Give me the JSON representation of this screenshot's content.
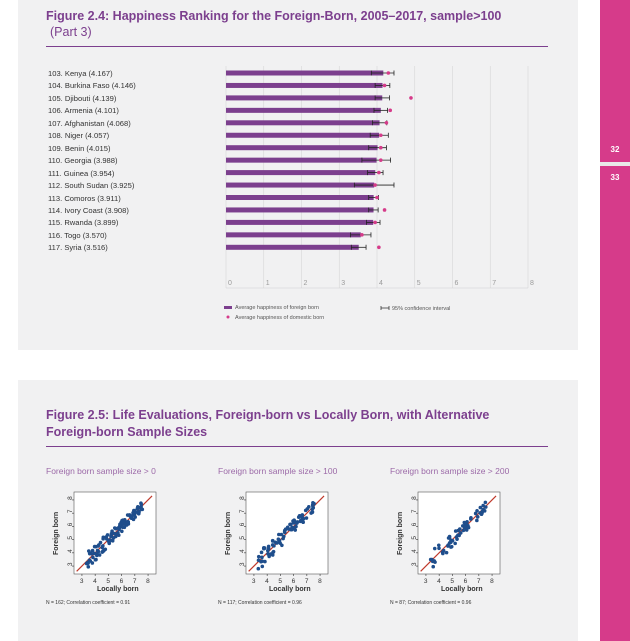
{
  "figure1": {
    "title": "Figure 2.4: Happiness Ranking for the Foreign-Born, 2005–2017, sample>100",
    "subtitle": "(Part 3)"
  },
  "figure2": {
    "title_line1": "Figure 2.5: Life Evaluations, Foreign-born vs Locally Born, with Alternative",
    "title_line2": "Foreign-born Sample Sizes"
  },
  "sidebar": {
    "page_a": "32",
    "page_b": "33",
    "accent": "#d63b8a"
  },
  "chart_data": [
    {
      "type": "bar",
      "orientation": "horizontal",
      "title": "Figure 2.4: Happiness Ranking for the Foreign-Born, 2005–2017, sample>100",
      "categories": [
        "103. Kenya (4.167)",
        "104. Burkina Faso (4.146)",
        "105. Djibouti (4.139)",
        "106. Armenia (4.101)",
        "107. Afghanistan (4.068)",
        "108. Niger (4.057)",
        "109. Benin (4.015)",
        "110. Georgia (3.988)",
        "111. Guinea (3.954)",
        "112. South Sudan (3.925)",
        "113. Comoros (3.911)",
        "114. Ivory Coast (3.908)",
        "115. Rwanda (3.899)",
        "116. Togo (3.570)",
        "117. Syria (3.516)"
      ],
      "series": [
        {
          "name": "Average happiness of foreign born",
          "values": [
            4.167,
            4.146,
            4.139,
            4.101,
            4.068,
            4.057,
            4.015,
            3.988,
            3.954,
            3.925,
            3.911,
            3.908,
            3.899,
            3.57,
            3.516
          ]
        },
        {
          "name": "95% confidence interval",
          "low": [
            3.85,
            3.95,
            3.95,
            3.92,
            3.88,
            3.82,
            3.78,
            3.6,
            3.75,
            3.4,
            3.78,
            3.78,
            3.72,
            3.3,
            3.32
          ],
          "high": [
            4.45,
            4.34,
            4.33,
            4.28,
            4.26,
            4.3,
            4.25,
            4.36,
            4.16,
            4.45,
            4.04,
            4.03,
            4.08,
            3.84,
            3.71
          ]
        },
        {
          "name": "Average happiness of domestic born",
          "values": [
            4.3,
            4.2,
            4.9,
            4.35,
            4.25,
            4.1,
            4.1,
            4.1,
            4.05,
            3.95,
            4.0,
            4.2,
            3.95,
            3.6,
            4.05
          ]
        }
      ],
      "xlim": [
        0,
        8
      ],
      "xticks": [
        0,
        1,
        2,
        3,
        4,
        5,
        6,
        7,
        8
      ],
      "legend": [
        "Average happiness of foreign born",
        "95% confidence interval",
        "Average happiness of domestic born"
      ]
    },
    {
      "type": "scatter",
      "title": "Foreign born sample size > 0",
      "xlabel": "Locally born",
      "ylabel": "Foreign born",
      "xticks": [
        3,
        4,
        5,
        6,
        7,
        8
      ],
      "yticks": [
        3,
        4,
        5,
        6,
        7,
        8
      ],
      "xlim": [
        2.4,
        8.6
      ],
      "ylim": [
        2.4,
        8.6
      ],
      "note": "N = 162; Correlation coefficient = 0.91",
      "seed": 11,
      "n_points": 110
    },
    {
      "type": "scatter",
      "title": "Foreign born sample size > 100",
      "xlabel": "Locally born",
      "ylabel": "Foreign born",
      "xticks": [
        3,
        4,
        5,
        6,
        7,
        8
      ],
      "yticks": [
        3,
        4,
        5,
        6,
        7,
        8
      ],
      "xlim": [
        2.4,
        8.6
      ],
      "ylim": [
        2.4,
        8.6
      ],
      "note": "N = 117; Correlation coefficient = 0.96",
      "seed": 29,
      "n_points": 85
    },
    {
      "type": "scatter",
      "title": "Foreign born sample size > 200",
      "xlabel": "Locally born",
      "ylabel": "Foreign born",
      "xticks": [
        3,
        4,
        5,
        6,
        7,
        8
      ],
      "yticks": [
        3,
        4,
        5,
        6,
        7,
        8
      ],
      "xlim": [
        2.4,
        8.6
      ],
      "ylim": [
        2.4,
        8.6
      ],
      "note": "N = 87; Correlation coefficient = 0.96",
      "seed": 47,
      "n_points": 62
    }
  ]
}
